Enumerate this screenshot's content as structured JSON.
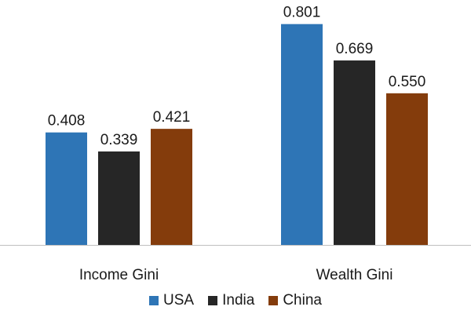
{
  "chart_data": {
    "type": "bar",
    "categories": [
      "Income Gini",
      "Wealth Gini"
    ],
    "series": [
      {
        "name": "USA",
        "values": [
          0.408,
          0.801
        ],
        "labels": [
          "0.408",
          "0.801"
        ],
        "color": "#2E75B6"
      },
      {
        "name": "India",
        "values": [
          0.339,
          0.669
        ],
        "labels": [
          "0.339",
          "0.669"
        ],
        "color": "#262626"
      },
      {
        "name": "China",
        "values": [
          0.421,
          0.55
        ],
        "labels": [
          "0.421",
          "0.550"
        ],
        "color": "#843C0C"
      }
    ],
    "title": "",
    "xlabel": "",
    "ylabel": "",
    "ylim": [
      0,
      0.82
    ],
    "grid": false,
    "legend_position": "bottom"
  }
}
